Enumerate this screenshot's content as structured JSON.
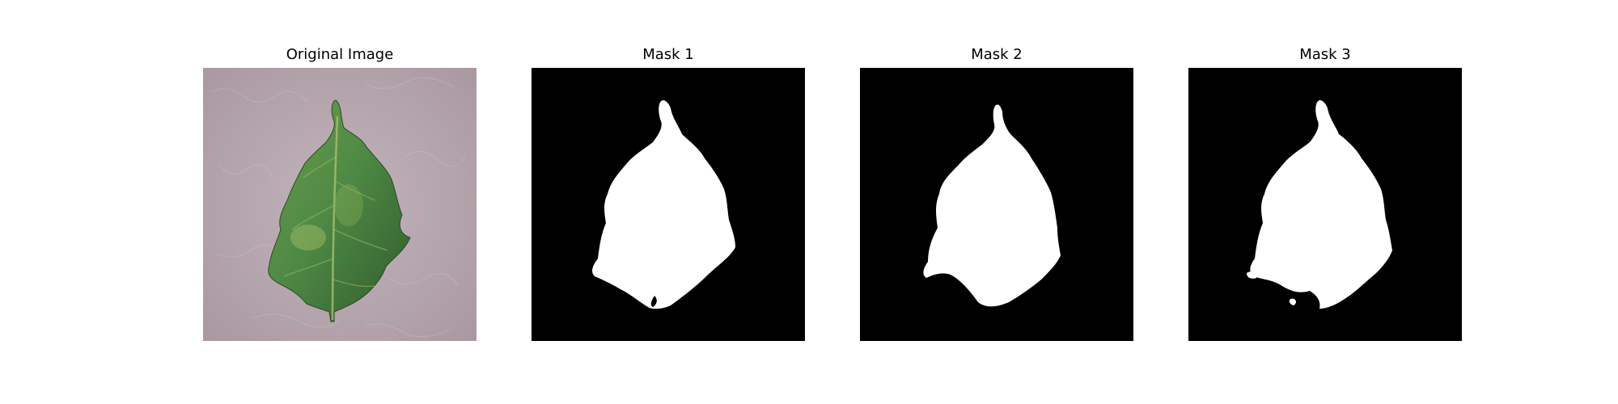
{
  "figure": {
    "panels": [
      {
        "title": "Original Image",
        "kind": "photo"
      },
      {
        "title": "Mask 1",
        "kind": "mask"
      },
      {
        "title": "Mask 2",
        "kind": "mask"
      },
      {
        "title": "Mask 3",
        "kind": "mask"
      }
    ]
  },
  "colors": {
    "mask_background": "#000000",
    "mask_foreground": "#ffffff",
    "photo_background": "#b8a9b0",
    "leaf_green": "#4f8a45",
    "leaf_light": "#8fb35a",
    "leaf_dark": "#2f5a2c"
  }
}
